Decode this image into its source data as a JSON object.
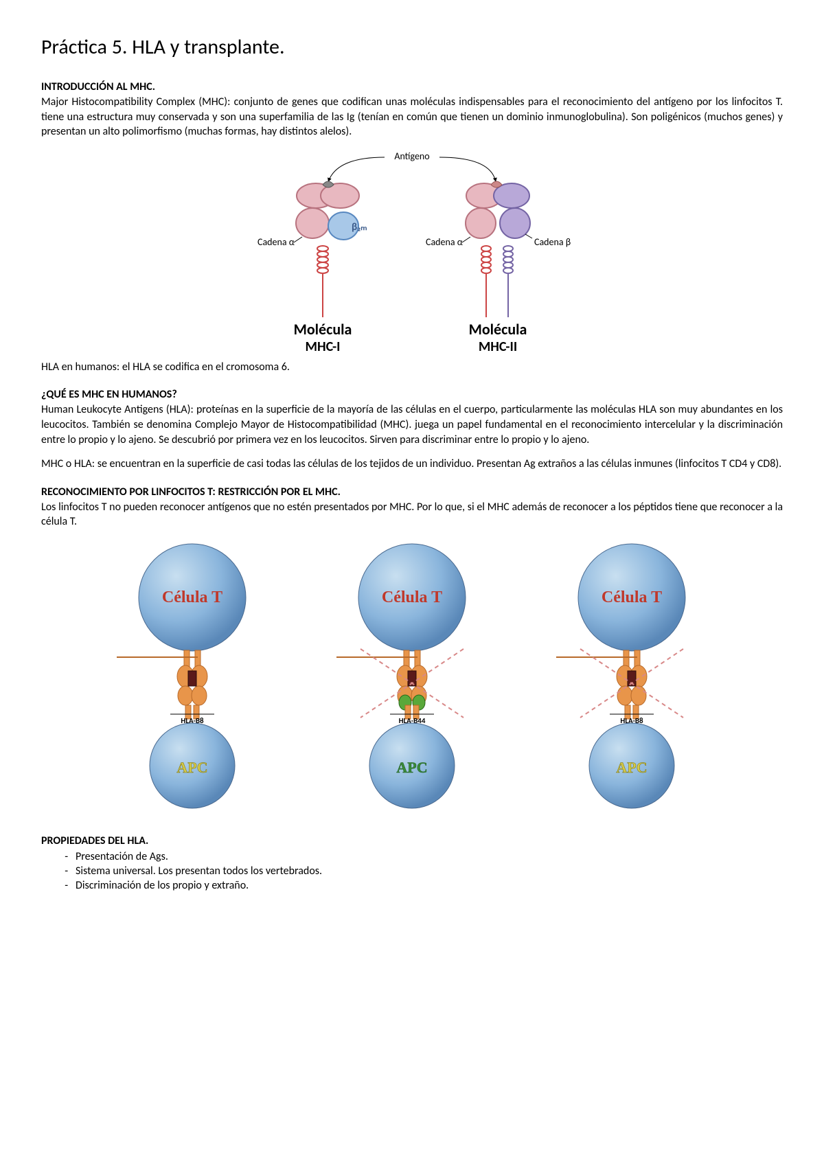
{
  "title": "Práctica 5. HLA y transplante.",
  "section1": {
    "heading": "INTRODUCCIÓN AL MHC.",
    "p1": "Major Histocompatibility Complex (MHC): conjunto de genes que codifican unas moléculas indispensables para el reconocimiento del antígeno por los linfocitos T. tiene una estructura muy conservada y son una superfamilia de las Ig (tenían en común que tienen un dominio inmunoglobulina). Son poligénicos (muchos genes) y presentan un alto polimorfismo (muchas formas, hay distintos alelos)."
  },
  "mhc_diagram": {
    "antigen_label": "Antígeno",
    "beta2m_label": "β₂ₘ",
    "chain_alpha": "Cadena α",
    "chain_beta": "Cadena β",
    "mol1_title": "Molécula",
    "mol1_sub": "MHC-I",
    "mol2_title": "Molécula",
    "mol2_sub": "MHC-II",
    "colors": {
      "pink_fill": "#e8b8c0",
      "pink_stroke": "#b8737f",
      "purple_fill": "#b8a8d8",
      "purple_stroke": "#7464a4",
      "blue_fill": "#a8c8e8",
      "blue_stroke": "#5888c0",
      "red_helix": "#c44",
      "purple_helix": "#7464a4"
    }
  },
  "hla_line": "HLA en humanos: el HLA se codifica en el cromosoma 6.",
  "section2": {
    "heading": "¿QUÉ ES MHC EN HUMANOS?",
    "p1": "Human Leukocyte Antigens (HLA): proteínas en la superficie de la mayoría de las células en el cuerpo, particularmente las moléculas HLA son muy abundantes en los leucocitos. También se denomina Complejo Mayor de Histocompatibilidad (MHC). juega un papel fundamental en el reconocimiento intercelular y la discriminación entre lo propio y lo ajeno. Se descubrió por primera vez en los leucocitos. Sirven para discriminar entre lo propio y lo ajeno.",
    "p2": "MHC o HLA: se encuentran en la superficie de casi todas las células de los tejidos de un individuo. Presentan Ag extraños a las células inmunes (linfocitos T CD4 y CD8)."
  },
  "section3": {
    "heading": "RECONOCIMIENTO POR LINFOCITOS T: RESTRICCIÓN POR EL MHC.",
    "p1": "Los linfocitos T no pueden reconocer antígenos que no estén presentados por MHC. Por lo que, si el MHC además de reconocer a los péptidos tiene que reconocer a la célula T."
  },
  "triple": {
    "tcell_label": "Célula T",
    "apc_label": "APC",
    "items": [
      {
        "hla": "HLA-B8",
        "crossed": false,
        "apc_green": false,
        "extra_green": false
      },
      {
        "hla": "HLA-B44",
        "crossed": true,
        "apc_green": true,
        "extra_green": true
      },
      {
        "hla": "HLA-B8",
        "crossed": true,
        "apc_green": false,
        "extra_green": false
      }
    ],
    "colors": {
      "sphere_grad_light": "#c8dff0",
      "sphere_grad_mid": "#8ab5dc",
      "sphere_grad_dark": "#5a88b8",
      "orange": "#e8954a",
      "dark_red": "#5a1a1a",
      "green": "#5aa83a",
      "cross": "#d88888"
    }
  },
  "section4": {
    "heading": "PROPIEDADES DEL HLA.",
    "items": [
      "Presentación de Ags.",
      "Sistema universal. Los presentan todos los vertebrados.",
      "Discriminación de los propio y extraño."
    ]
  }
}
